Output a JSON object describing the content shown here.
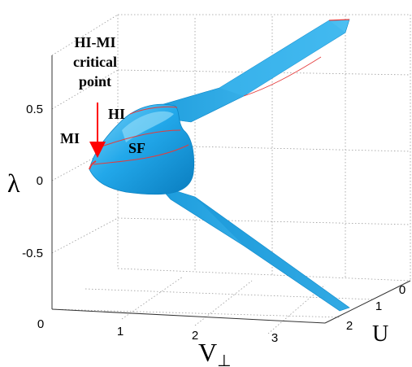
{
  "axes": {
    "z_label": "λ",
    "x_label": "V",
    "x_label_sub": "⊥",
    "y_label": "U",
    "z_ticks": [
      "0.5",
      "0",
      "-0.5"
    ],
    "x_ticks": [
      "0",
      "1",
      "2",
      "3"
    ],
    "y_ticks": [
      "0",
      "1",
      "2"
    ]
  },
  "annotations": {
    "critical_line1": "HI-MI",
    "critical_line2": "critical",
    "critical_line3": "point",
    "hi": "HI",
    "mi": "MI",
    "sf": "SF"
  },
  "colors": {
    "surface": "#1ea5e8",
    "surface_dark": "#0a7dbf",
    "surface_light": "#5cc6f5",
    "boundary": "#e53b3b",
    "arrow": "#ff0000"
  }
}
